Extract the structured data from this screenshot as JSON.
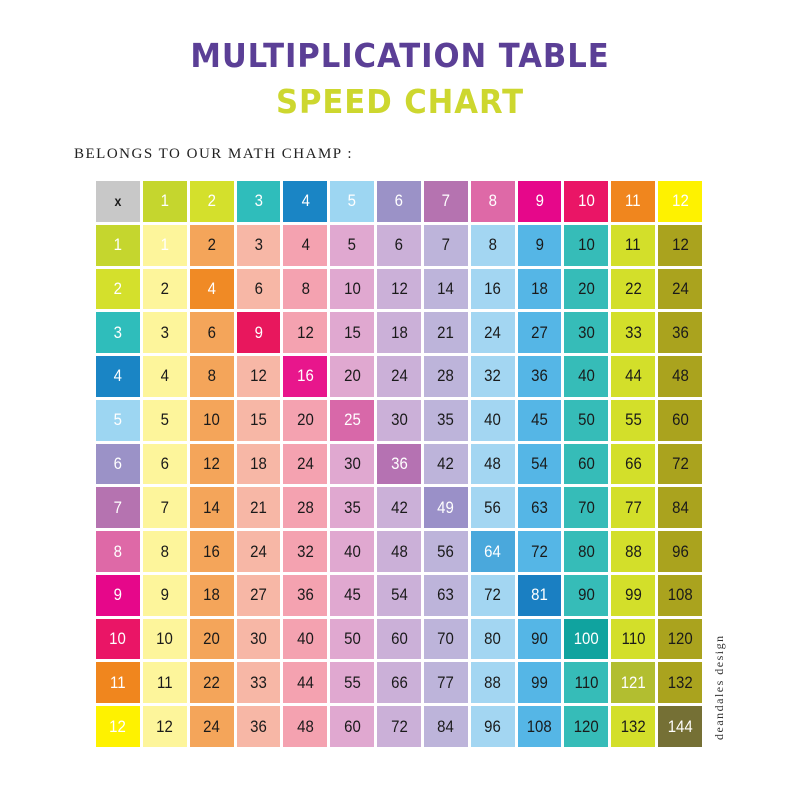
{
  "title": "MULTIPLICATION TABLE",
  "subtitle": "SPEED CHART",
  "owner_label": "BELONGS TO OUR MATH CHAMP :",
  "credit": "deandales design",
  "table": {
    "corner": "x",
    "header_colors": [
      "#c8c8c8",
      "#c5d62e",
      "#d4e02c",
      "#2fbdbb",
      "#1a85c5",
      "#9dd6f2",
      "#9b92c7",
      "#b573b0",
      "#de69a7",
      "#e6078a",
      "#ea1566",
      "#f0861e",
      "#fef200"
    ],
    "column_colors": [
      "#fdf59b",
      "#f4a55a",
      "#f7b7a6",
      "#f4a2b0",
      "#e0a8d0",
      "#cbb0d8",
      "#bdb4da",
      "#a3d6f2",
      "#55b6e6",
      "#36bcb8",
      "#d3df2a",
      "#aaa31e"
    ],
    "diagonal_colors": [
      "#fdf59b",
      "#f08a25",
      "#e8175d",
      "#e8168c",
      "#d868a9",
      "#b572b2",
      "#9a90c8",
      "#4aa8dc",
      "#1a7fc2",
      "#10a39f",
      "#b2be30",
      "#757035"
    ],
    "headers": [
      "1",
      "2",
      "3",
      "4",
      "5",
      "6",
      "7",
      "8",
      "9",
      "10",
      "11",
      "12"
    ],
    "rows": [
      [
        "1",
        "2",
        "3",
        "4",
        "5",
        "6",
        "7",
        "8",
        "9",
        "10",
        "11",
        "12"
      ],
      [
        "2",
        "4",
        "6",
        "8",
        "10",
        "12",
        "14",
        "16",
        "18",
        "20",
        "22",
        "24"
      ],
      [
        "3",
        "6",
        "9",
        "12",
        "15",
        "18",
        "21",
        "24",
        "27",
        "30",
        "33",
        "36"
      ],
      [
        "4",
        "8",
        "12",
        "16",
        "20",
        "24",
        "28",
        "32",
        "36",
        "40",
        "44",
        "48"
      ],
      [
        "5",
        "10",
        "15",
        "20",
        "25",
        "30",
        "35",
        "40",
        "45",
        "50",
        "55",
        "60"
      ],
      [
        "6",
        "12",
        "18",
        "24",
        "30",
        "36",
        "42",
        "48",
        "54",
        "60",
        "66",
        "72"
      ],
      [
        "7",
        "14",
        "21",
        "28",
        "35",
        "42",
        "49",
        "56",
        "63",
        "70",
        "77",
        "84"
      ],
      [
        "8",
        "16",
        "24",
        "32",
        "40",
        "48",
        "56",
        "64",
        "72",
        "80",
        "88",
        "96"
      ],
      [
        "9",
        "18",
        "27",
        "36",
        "45",
        "54",
        "63",
        "72",
        "81",
        "90",
        "99",
        "108"
      ],
      [
        "10",
        "20",
        "30",
        "40",
        "50",
        "60",
        "70",
        "80",
        "90",
        "100",
        "110",
        "120"
      ],
      [
        "11",
        "22",
        "33",
        "44",
        "55",
        "66",
        "77",
        "88",
        "99",
        "110",
        "121",
        "132"
      ],
      [
        "12",
        "24",
        "36",
        "48",
        "60",
        "72",
        "84",
        "96",
        "108",
        "120",
        "132",
        "144"
      ]
    ]
  }
}
